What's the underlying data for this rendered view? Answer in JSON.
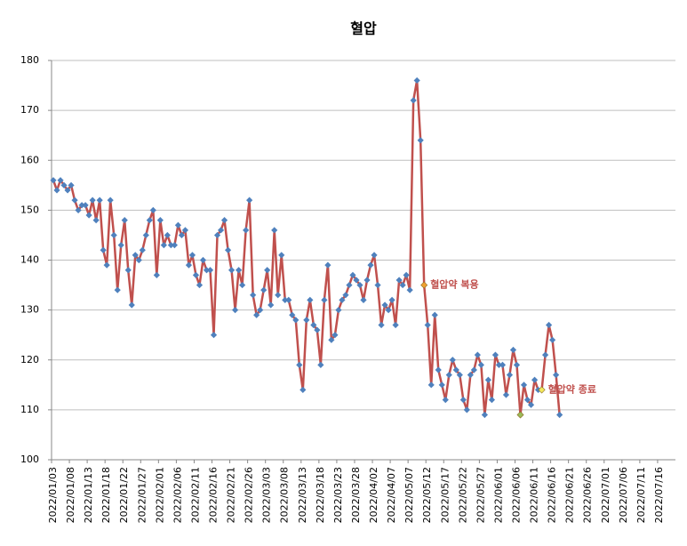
{
  "chart_data": {
    "type": "line",
    "title": "혈압",
    "categories": [
      "2022/01/03",
      null,
      null,
      null,
      null,
      "2022/01/08",
      null,
      null,
      null,
      null,
      "2022/01/13",
      null,
      null,
      null,
      null,
      "2022/01/18",
      null,
      null,
      null,
      null,
      "2022/01/22",
      null,
      null,
      null,
      null,
      "2022/01/27",
      null,
      null,
      null,
      null,
      "2022/02/01",
      null,
      null,
      null,
      null,
      "2022/02/06",
      null,
      null,
      null,
      null,
      "2022/02/11",
      null,
      null,
      null,
      null,
      "2022/02/16",
      null,
      null,
      null,
      null,
      "2022/02/21",
      null,
      null,
      null,
      null,
      "2022/02/26",
      null,
      null,
      null,
      null,
      "2022/03/03",
      null,
      null,
      null,
      null,
      "2022/03/08",
      null,
      null,
      null,
      null,
      "2022/03/13",
      null,
      null,
      null,
      null,
      "2022/03/18",
      null,
      null,
      null,
      null,
      "2022/03/23",
      null,
      null,
      null,
      null,
      "2022/03/28",
      null,
      null,
      null,
      null,
      "2022/04/02",
      null,
      null,
      null,
      null,
      "2022/04/07",
      null,
      null,
      null,
      null,
      "2022/05/07",
      null,
      null,
      null,
      null,
      "2022/05/12",
      null,
      null,
      null,
      null,
      "2022/05/17",
      null,
      null,
      null,
      null,
      "2022/05/22",
      null,
      null,
      null,
      null,
      "2022/05/27",
      null,
      null,
      null,
      null,
      "2022/06/01",
      null,
      null,
      null,
      null,
      "2022/06/06",
      null,
      null,
      null,
      null,
      "2022/06/11",
      null,
      null,
      null,
      null,
      "2022/06/16",
      null,
      null,
      null,
      null,
      "2022/06/21",
      null,
      null,
      null,
      null,
      "2022/06/26",
      null,
      null,
      null,
      null,
      "2022/07/01",
      null,
      null,
      null,
      null,
      "2022/07/06",
      null,
      null,
      null,
      null,
      "2022/07/11",
      null,
      null,
      null,
      null,
      "2022/07/16",
      null,
      null,
      null,
      null
    ],
    "series": [
      {
        "color": "#c0504d",
        "marker_color": "#4f81bd",
        "values": [
          156,
          154,
          156,
          155,
          154,
          155,
          152,
          150,
          151,
          151,
          149,
          152,
          148,
          152,
          142,
          139,
          152,
          145,
          134,
          143,
          148,
          138,
          131,
          141,
          140,
          142,
          145,
          148,
          150,
          137,
          148,
          143,
          145,
          143,
          143,
          147,
          145,
          146,
          139,
          141,
          137,
          135,
          140,
          138,
          138,
          125,
          145,
          146,
          148,
          142,
          138,
          130,
          138,
          135,
          146,
          152,
          133,
          129,
          130,
          134,
          138,
          131,
          146,
          133,
          141,
          132,
          132,
          129,
          128,
          119,
          114,
          128,
          132,
          127,
          126,
          119,
          132,
          139,
          124,
          125,
          130,
          132,
          133,
          135,
          137,
          136,
          135,
          132,
          136,
          139,
          141,
          135,
          127,
          131,
          130,
          132,
          127,
          136,
          135,
          137,
          134,
          172,
          176,
          164,
          135,
          127,
          115,
          129,
          118,
          115,
          112,
          117,
          120,
          118,
          117,
          112,
          110,
          117,
          118,
          121,
          119,
          109,
          116,
          112,
          121,
          119,
          119,
          113,
          117,
          122,
          119,
          109,
          115,
          112,
          111,
          116,
          114,
          114,
          121,
          127,
          124,
          117,
          109,
          null,
          null,
          null,
          null,
          null,
          null,
          null,
          null,
          null,
          null,
          null,
          null,
          null,
          null,
          null,
          null,
          null,
          null,
          null,
          null,
          null,
          null,
          null,
          null,
          null,
          null,
          null,
          null,
          null,
          null,
          null,
          null
        ]
      }
    ],
    "highlights": [
      {
        "text": "혈압약 복용",
        "point": 104,
        "color": "#f0a030"
      },
      {
        "point": 131,
        "color": "#9bbb59"
      },
      {
        "text": "혈압약 종료",
        "point": 137,
        "color": "#f2e85c"
      }
    ],
    "ylim": [
      100,
      180
    ],
    "yticks": [
      100,
      110,
      120,
      130,
      140,
      150,
      160,
      170,
      180
    ],
    "grid": true
  }
}
